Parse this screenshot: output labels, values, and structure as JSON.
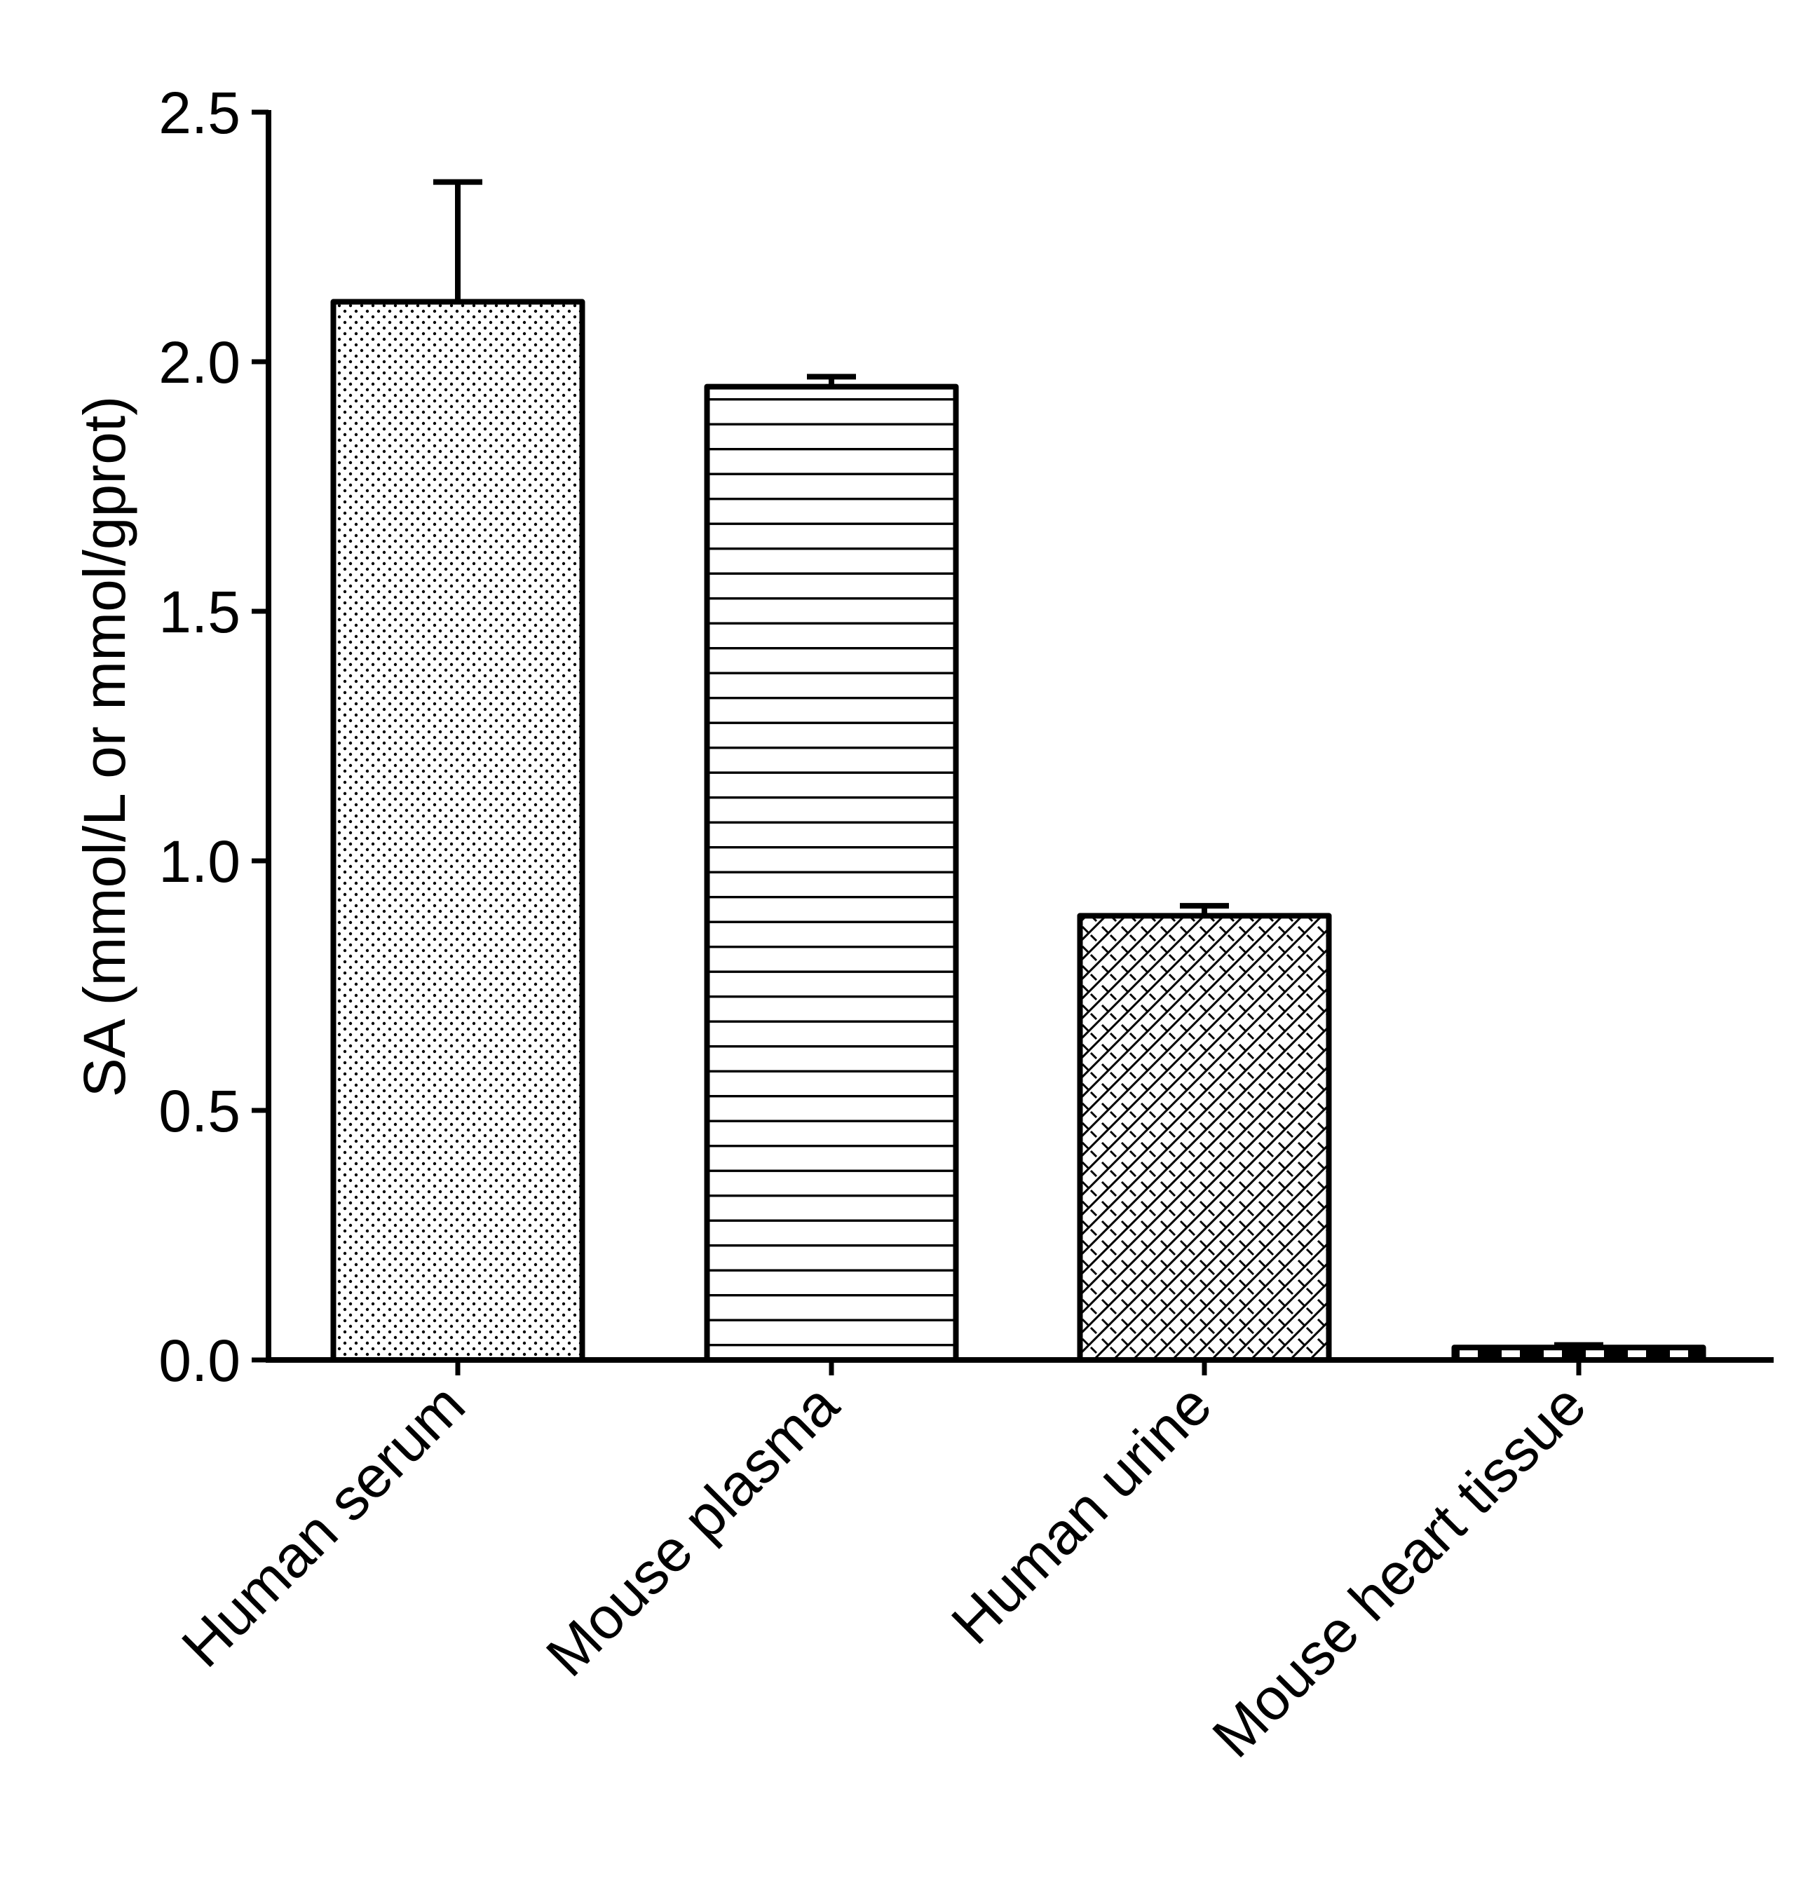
{
  "chart_data": {
    "type": "bar",
    "title": "",
    "xlabel": "",
    "ylabel": "SA (mmol/L or mmol/gprot)",
    "ylim": [
      0,
      2.5
    ],
    "yticks": [
      "0.0",
      "0.5",
      "1.0",
      "1.5",
      "2.0",
      "2.5"
    ],
    "grid": false,
    "legend": "none",
    "categories": [
      "Human serum",
      "Mouse plasma",
      "Human urine",
      "Mouse heart tissue"
    ],
    "values": [
      2.12,
      1.95,
      0.89,
      0.025
    ],
    "errors": [
      0.24,
      0.02,
      0.02,
      0.005
    ],
    "patterns": [
      "dots",
      "horizontal-lines",
      "crosshatch-diagonal",
      "dashes"
    ],
    "colors": {
      "stroke": "#000000",
      "fill": "#ffffff"
    }
  }
}
